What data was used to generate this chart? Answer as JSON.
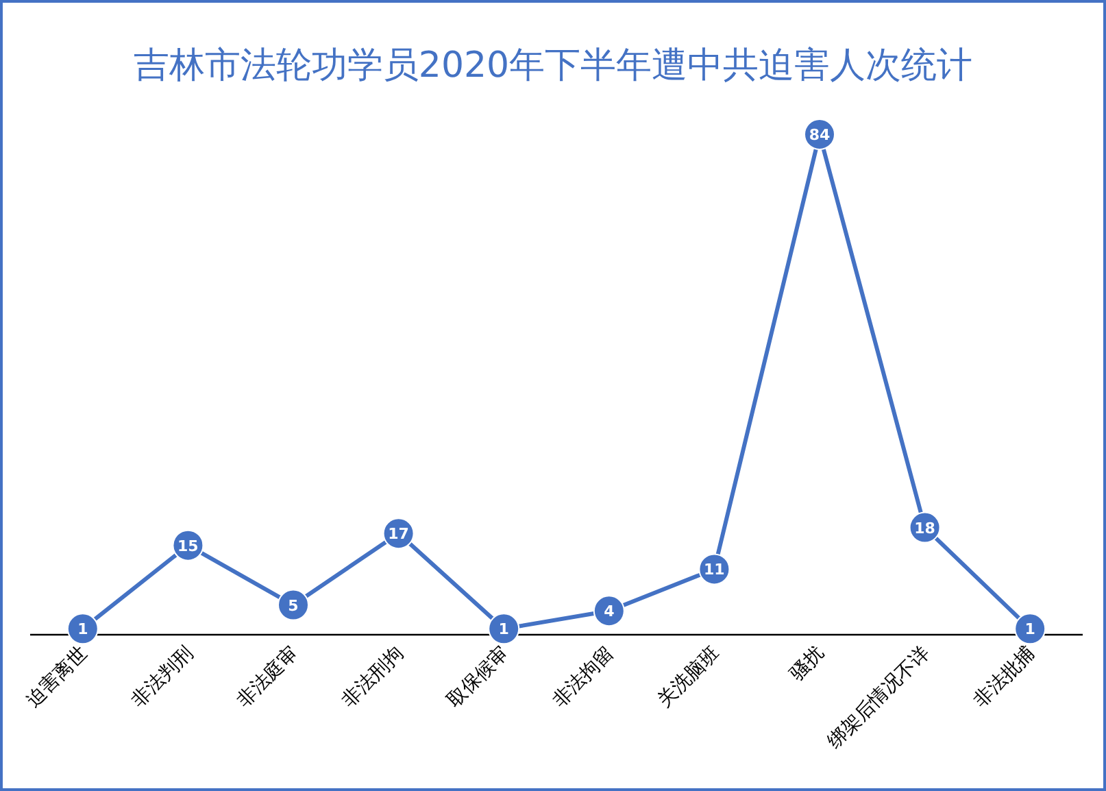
{
  "chart_data": {
    "type": "line",
    "title": "吉林市法轮功学员2020年下半年遭中共迫害人次统计",
    "categories": [
      "迫害离世",
      "非法判刑",
      "非法庭审",
      "非法刑拘",
      "取保候审",
      "非法拘留",
      "关洗脑班",
      "骚扰",
      "绑架后情况不详",
      "非法批捕"
    ],
    "series": [
      {
        "color": "#4472c4",
        "values": [
          1,
          15,
          5,
          17,
          1,
          4,
          11,
          84,
          18,
          1
        ]
      }
    ],
    "data_labels": true,
    "marker": "circle",
    "line_style": "solid"
  }
}
